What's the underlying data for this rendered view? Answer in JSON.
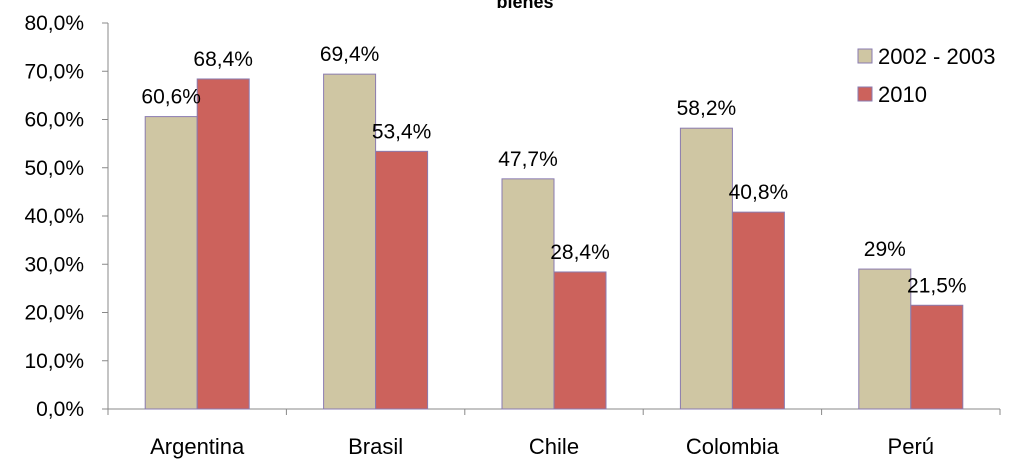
{
  "chart_data": {
    "type": "bar",
    "title": "bienes",
    "categories": [
      "Argentina",
      "Brasil",
      "Chile",
      "Colombia",
      "Perú"
    ],
    "series": [
      {
        "name": "2002 - 2003",
        "values": [
          60.6,
          69.4,
          47.7,
          58.2,
          29.0
        ],
        "labels": [
          "60,6%",
          "69,4%",
          "47,7%",
          "58,2%",
          "29%"
        ],
        "color": "#cfc6a3",
        "border": "#8a7bb0"
      },
      {
        "name": "2010",
        "values": [
          68.4,
          53.4,
          28.4,
          40.8,
          21.5
        ],
        "labels": [
          "68,4%",
          "53,4%",
          "28,4%",
          "40,8%",
          "21,5%"
        ],
        "color": "#cc625c",
        "border": "#8a7bb0"
      }
    ],
    "ylim": [
      0,
      80
    ],
    "yticks": [
      0,
      10,
      20,
      30,
      40,
      50,
      60,
      70,
      80
    ],
    "ytick_labels": [
      "0,0%",
      "10,0%",
      "20,0%",
      "30,0%",
      "40,0%",
      "50,0%",
      "60,0%",
      "70,0%",
      "80,0%"
    ],
    "xlabel": "",
    "ylabel": "",
    "grid": false,
    "legend_position": "top-right"
  }
}
